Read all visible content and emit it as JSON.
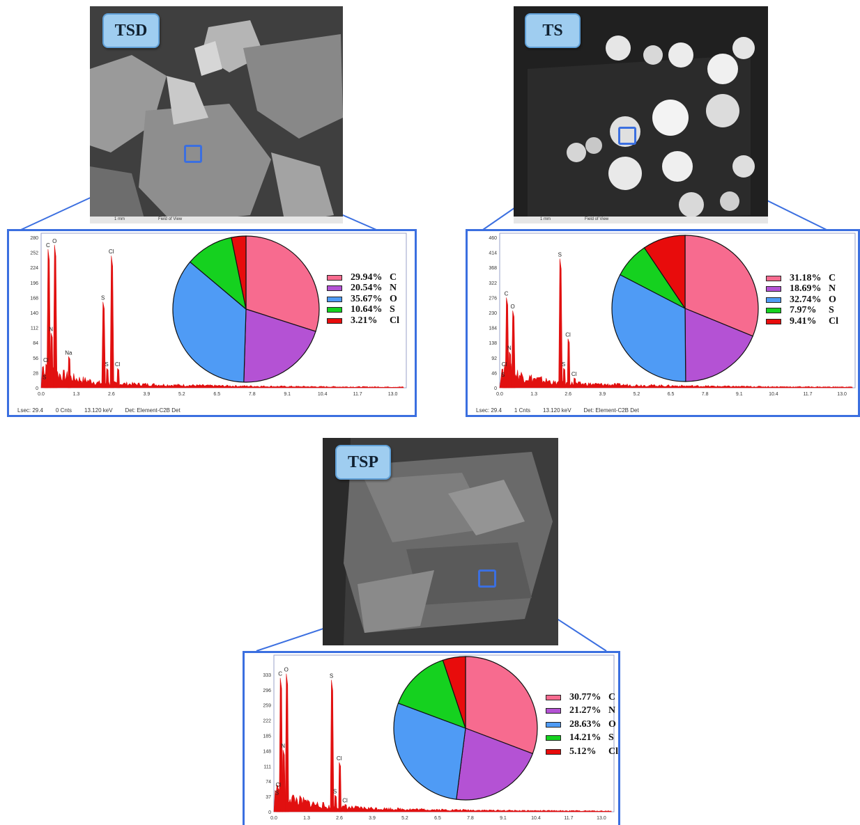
{
  "panels": [
    {
      "id": "tsd",
      "label": "TSD",
      "sem_scale": "1 mm",
      "sem_fov": "Field of View",
      "footer": {
        "lsec": "Lsec: 29.4",
        "cnts": "0 Cnts",
        "kev": "13.120 keV",
        "det": "Det: Element-C2B Det"
      },
      "legend": [
        {
          "pct": "29.94%",
          "el": "C"
        },
        {
          "pct": "20.54%",
          "el": "N"
        },
        {
          "pct": "35.67%",
          "el": "O"
        },
        {
          "pct": "10.64%",
          "el": "S"
        },
        {
          "pct": "3.21%",
          "el": "Cl"
        }
      ]
    },
    {
      "id": "ts",
      "label": "TS",
      "sem_scale": "1 mm",
      "sem_fov": "Field of View",
      "footer": {
        "lsec": "Lsec: 29.4",
        "cnts": "1 Cnts",
        "kev": "13.120 keV",
        "det": "Det: Element-C2B Det"
      },
      "legend": [
        {
          "pct": "31.18%",
          "el": "C"
        },
        {
          "pct": "18.69%",
          "el": "N"
        },
        {
          "pct": "32.74%",
          "el": "O"
        },
        {
          "pct": "7.97%",
          "el": "S"
        },
        {
          "pct": "9.41%",
          "el": "Cl"
        }
      ]
    },
    {
      "id": "tsp",
      "label": "TSP",
      "legend": [
        {
          "pct": "30.77%",
          "el": "C"
        },
        {
          "pct": "21.27%",
          "el": "N"
        },
        {
          "pct": "28.63%",
          "el": "O"
        },
        {
          "pct": "14.21%",
          "el": "S"
        },
        {
          "pct": "5.12%",
          "el": "Cl"
        }
      ]
    }
  ],
  "colors": {
    "C": "#f76b8f",
    "N": "#b452d4",
    "O": "#4f9bf5",
    "S": "#15d11f",
    "Cl": "#e80c0c",
    "spectrum": "#e11010",
    "accent": "#3b6fe0"
  },
  "chart_data": [
    {
      "type": "bar",
      "panel": "TSD",
      "x": [
        0.0,
        1.3,
        2.6,
        3.9,
        5.2,
        6.5,
        7.8,
        9.1,
        10.4,
        11.7,
        13.0
      ],
      "yticks": [
        0,
        28,
        56,
        84,
        112,
        140,
        168,
        196,
        224,
        252,
        280
      ],
      "xlim": [
        0,
        13.5
      ],
      "ylim": [
        0,
        280
      ],
      "peaks": [
        {
          "label": "C",
          "x": 0.28,
          "y": 258
        },
        {
          "label": "O",
          "x": 0.52,
          "y": 266
        },
        {
          "label": "N",
          "x": 0.39,
          "y": 102
        },
        {
          "label": "Na",
          "x": 1.04,
          "y": 58
        },
        {
          "label": "Cl",
          "x": 0.2,
          "y": 44
        },
        {
          "label": "S",
          "x": 0.15,
          "y": 12
        },
        {
          "label": "S",
          "x": 2.31,
          "y": 160
        },
        {
          "label": "Cl",
          "x": 2.62,
          "y": 246
        },
        {
          "label": "S",
          "x": 2.45,
          "y": 36
        },
        {
          "label": "Cl",
          "x": 2.85,
          "y": 36
        }
      ]
    },
    {
      "type": "pie",
      "panel": "TSD",
      "categories": [
        "C",
        "N",
        "O",
        "S",
        "Cl"
      ],
      "values": [
        29.94,
        20.54,
        35.67,
        10.64,
        3.21
      ]
    },
    {
      "type": "bar",
      "panel": "TS",
      "x": [
        0.0,
        1.3,
        2.6,
        3.9,
        5.2,
        6.5,
        7.8,
        9.1,
        10.4,
        11.7,
        13.0
      ],
      "yticks": [
        0,
        46,
        92,
        138,
        184,
        230,
        276,
        322,
        368,
        414,
        "460"
      ],
      "xlim": [
        0,
        13.5
      ],
      "ylim": [
        0,
        460
      ],
      "peaks": [
        {
          "label": "C",
          "x": 0.28,
          "y": 276
        },
        {
          "label": "O",
          "x": 0.52,
          "y": 236
        },
        {
          "label": "N",
          "x": 0.39,
          "y": 110
        },
        {
          "label": "Cl",
          "x": 0.2,
          "y": 60
        },
        {
          "label": "S",
          "x": 0.15,
          "y": 28
        },
        {
          "label": "S",
          "x": 2.31,
          "y": 395
        },
        {
          "label": "Cl",
          "x": 2.62,
          "y": 150
        },
        {
          "label": "S",
          "x": 2.45,
          "y": 60
        },
        {
          "label": "Cl",
          "x": 2.85,
          "y": 30
        }
      ]
    },
    {
      "type": "pie",
      "panel": "TS",
      "categories": [
        "C",
        "N",
        "O",
        "S",
        "Cl"
      ],
      "values": [
        31.18,
        18.69,
        32.74,
        7.97,
        9.41
      ]
    },
    {
      "type": "bar",
      "panel": "TSP",
      "x": [
        0.0,
        1.3,
        2.6,
        3.9,
        5.2,
        6.5,
        7.8,
        9.1,
        10.4,
        11.7,
        13.0
      ],
      "yticks": [
        0,
        37,
        74,
        111,
        148,
        185,
        222,
        259,
        296,
        333
      ],
      "xlim": [
        0,
        13.5
      ],
      "ylim": [
        0,
        370
      ],
      "peaks": [
        {
          "label": "C",
          "x": 0.28,
          "y": 325
        },
        {
          "label": "O",
          "x": 0.52,
          "y": 335
        },
        {
          "label": "N",
          "x": 0.39,
          "y": 150
        },
        {
          "label": "Cl",
          "x": 0.2,
          "y": 56
        },
        {
          "label": "S",
          "x": 0.15,
          "y": 36
        },
        {
          "label": "S",
          "x": 2.31,
          "y": 320
        },
        {
          "label": "Cl",
          "x": 2.62,
          "y": 120
        },
        {
          "label": "S",
          "x": 2.45,
          "y": 40
        },
        {
          "label": "Cl",
          "x": 2.85,
          "y": 18
        }
      ]
    },
    {
      "type": "pie",
      "panel": "TSP",
      "categories": [
        "C",
        "N",
        "O",
        "S",
        "Cl"
      ],
      "values": [
        30.77,
        21.27,
        28.63,
        14.21,
        5.12
      ]
    }
  ]
}
